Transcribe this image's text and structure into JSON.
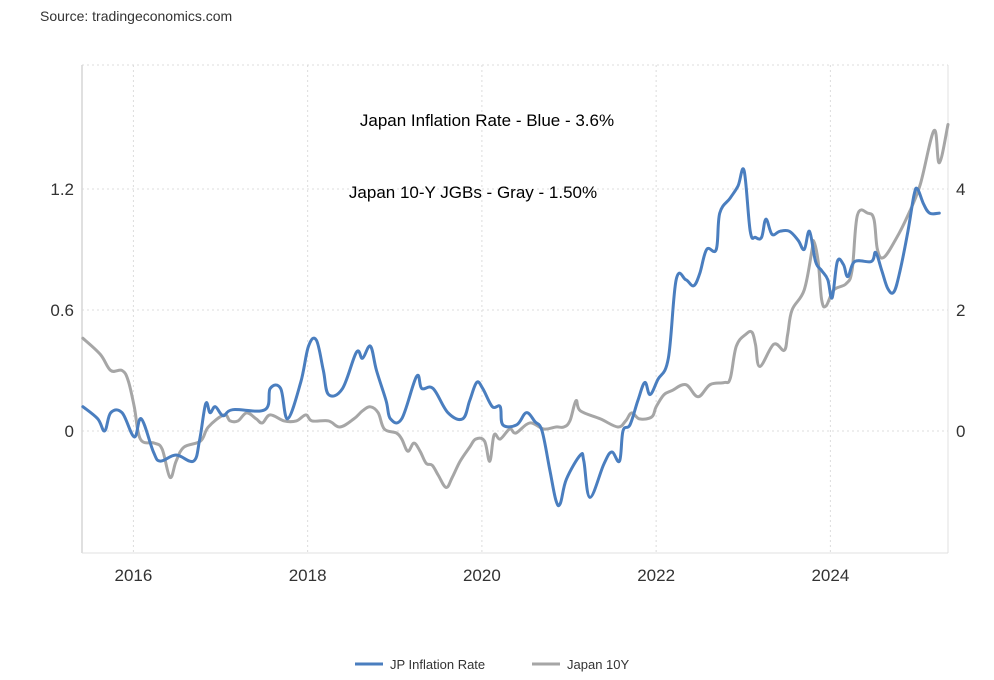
{
  "source": "Source: tradingeconomics.com",
  "chart_data": {
    "type": "line",
    "title": "",
    "annotations": [
      "Japan Inflation Rate - Blue - 3.6%",
      "Japan 10-Y JGBs - Gray - 1.50%"
    ],
    "xlim": [
      2015.41,
      2025.35
    ],
    "x_ticks": [
      "2016",
      "2018",
      "2020",
      "2022",
      "2024"
    ],
    "x_tick_values": [
      2016,
      2018,
      2020,
      2022,
      2024
    ],
    "y_left": {
      "ticks": [
        "0",
        "0.6",
        "1.2"
      ],
      "tick_values": [
        0,
        0.6,
        1.2
      ],
      "ylim": [
        -0.605,
        1.815
      ]
    },
    "y_right": {
      "ticks": [
        "0",
        "2",
        "4"
      ],
      "tick_values": [
        0,
        2,
        4
      ],
      "ylim": [
        -2.02,
        6.05
      ]
    },
    "grid": true,
    "legend_position": "bottom",
    "series": [
      {
        "name": "JP Inflation Rate",
        "color": "#4a7ebf",
        "axis": "right",
        "x": [
          2015.42,
          2015.59,
          2015.67,
          2015.74,
          2015.87,
          2016.01,
          2016.09,
          2016.23,
          2016.31,
          2016.49,
          2016.69,
          2016.76,
          2016.83,
          2016.88,
          2016.94,
          2017.03,
          2017.14,
          2017.51,
          2017.57,
          2017.69,
          2017.77,
          2017.92,
          2018.01,
          2018.1,
          2018.18,
          2018.24,
          2018.4,
          2018.56,
          2018.63,
          2018.72,
          2018.79,
          2018.9,
          2018.95,
          2019.08,
          2019.25,
          2019.31,
          2019.44,
          2019.61,
          2019.78,
          2019.86,
          2019.94,
          2020.01,
          2020.12,
          2020.21,
          2020.24,
          2020.4,
          2020.51,
          2020.61,
          2020.69,
          2020.78,
          2020.85,
          2020.9,
          2020.97,
          2021.13,
          2021.17,
          2021.24,
          2021.4,
          2021.49,
          2021.58,
          2021.62,
          2021.7,
          2021.79,
          2021.87,
          2021.93,
          2022.02,
          2022.14,
          2022.23,
          2022.34,
          2022.43,
          2022.5,
          2022.58,
          2022.69,
          2022.73,
          2022.85,
          2022.94,
          2023.01,
          2023.08,
          2023.14,
          2023.21,
          2023.26,
          2023.33,
          2023.42,
          2023.53,
          2023.63,
          2023.7,
          2023.76,
          2023.83,
          2023.9,
          2023.97,
          2024.02,
          2024.08,
          2024.15,
          2024.2,
          2024.28,
          2024.47,
          2024.52,
          2024.59,
          2024.66,
          2024.73,
          2024.8,
          2024.89,
          2024.96,
          2025.0,
          2025.07,
          2025.14,
          2025.25
        ],
        "values": [
          0.4,
          0.2,
          0.0,
          0.3,
          0.3,
          -0.1,
          0.2,
          -0.35,
          -0.5,
          -0.4,
          -0.5,
          -0.15,
          0.45,
          0.3,
          0.4,
          0.25,
          0.35,
          0.35,
          0.7,
          0.7,
          0.2,
          0.8,
          1.4,
          1.5,
          1.0,
          0.6,
          0.7,
          1.3,
          1.2,
          1.4,
          1.0,
          0.5,
          0.2,
          0.2,
          0.9,
          0.7,
          0.7,
          0.3,
          0.2,
          0.5,
          0.8,
          0.7,
          0.4,
          0.4,
          0.1,
          0.1,
          0.3,
          0.15,
          0.0,
          -0.65,
          -1.15,
          -1.2,
          -0.8,
          -0.4,
          -0.5,
          -1.1,
          -0.55,
          -0.35,
          -0.5,
          0.0,
          0.1,
          0.5,
          0.8,
          0.6,
          0.85,
          1.2,
          2.5,
          2.5,
          2.4,
          2.6,
          3.0,
          3.0,
          3.6,
          3.85,
          4.05,
          4.3,
          3.3,
          3.2,
          3.2,
          3.5,
          3.25,
          3.3,
          3.3,
          3.15,
          3.0,
          3.3,
          2.8,
          2.65,
          2.5,
          2.2,
          2.8,
          2.75,
          2.55,
          2.8,
          2.8,
          2.95,
          2.65,
          2.35,
          2.3,
          2.65,
          3.3,
          3.9,
          4.0,
          3.75,
          3.6,
          3.6
        ]
      },
      {
        "name": "Japan 10Y",
        "color": "#a6a6a6",
        "axis": "left",
        "x": [
          2015.42,
          2015.62,
          2015.74,
          2015.87,
          2015.94,
          2016.01,
          2016.08,
          2016.24,
          2016.33,
          2016.42,
          2016.49,
          2016.58,
          2016.77,
          2016.86,
          2017.04,
          2017.11,
          2017.2,
          2017.3,
          2017.41,
          2017.48,
          2017.57,
          2017.73,
          2017.87,
          2017.98,
          2018.05,
          2018.24,
          2018.37,
          2018.53,
          2018.63,
          2018.72,
          2018.81,
          2018.88,
          2019.02,
          2019.08,
          2019.15,
          2019.22,
          2019.29,
          2019.36,
          2019.43,
          2019.5,
          2019.59,
          2019.66,
          2019.75,
          2019.86,
          2019.93,
          2020.03,
          2020.09,
          2020.14,
          2020.21,
          2020.32,
          2020.39,
          2020.55,
          2020.71,
          2020.85,
          2020.94,
          2021.01,
          2021.08,
          2021.13,
          2021.36,
          2021.56,
          2021.65,
          2021.72,
          2021.81,
          2021.95,
          2022.0,
          2022.09,
          2022.18,
          2022.34,
          2022.48,
          2022.62,
          2022.78,
          2022.85,
          2022.92,
          2023.03,
          2023.1,
          2023.14,
          2023.19,
          2023.35,
          2023.47,
          2023.51,
          2023.56,
          2023.7,
          2023.79,
          2023.81,
          2023.86,
          2023.9,
          2023.95,
          2024.04,
          2024.18,
          2024.25,
          2024.31,
          2024.43,
          2024.5,
          2024.54,
          2024.61,
          2024.75,
          2024.89,
          2025.03,
          2025.19,
          2025.25,
          2025.35
        ],
        "values": [
          0.46,
          0.38,
          0.3,
          0.3,
          0.25,
          0.12,
          -0.04,
          -0.06,
          -0.09,
          -0.23,
          -0.15,
          -0.08,
          -0.05,
          0.02,
          0.08,
          0.05,
          0.05,
          0.09,
          0.06,
          0.04,
          0.08,
          0.05,
          0.05,
          0.08,
          0.05,
          0.05,
          0.02,
          0.06,
          0.1,
          0.12,
          0.09,
          0.01,
          -0.01,
          -0.04,
          -0.1,
          -0.06,
          -0.1,
          -0.16,
          -0.17,
          -0.22,
          -0.28,
          -0.23,
          -0.15,
          -0.08,
          -0.04,
          -0.05,
          -0.15,
          -0.02,
          -0.04,
          0.01,
          -0.01,
          0.04,
          0.01,
          0.02,
          0.02,
          0.05,
          0.15,
          0.1,
          0.06,
          0.02,
          0.05,
          0.09,
          0.06,
          0.07,
          0.12,
          0.18,
          0.2,
          0.23,
          0.17,
          0.23,
          0.24,
          0.26,
          0.42,
          0.48,
          0.49,
          0.43,
          0.32,
          0.43,
          0.4,
          0.48,
          0.6,
          0.7,
          0.9,
          0.94,
          0.84,
          0.65,
          0.62,
          0.7,
          0.73,
          0.8,
          1.07,
          1.08,
          1.05,
          0.9,
          0.86,
          0.95,
          1.07,
          1.22,
          1.49,
          1.33,
          1.52
        ]
      }
    ]
  }
}
